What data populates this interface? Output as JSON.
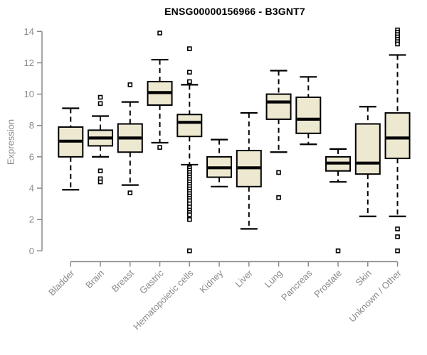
{
  "title": "ENSG00000156966 - B3GNT7",
  "chart_data": {
    "type": "boxplot",
    "title": "ENSG00000156966 - B3GNT7",
    "ylabel": "Expression",
    "ylim": [
      0,
      14
    ],
    "yticks": [
      0,
      2,
      4,
      6,
      8,
      10,
      12,
      14
    ],
    "grid": false,
    "legend": "none",
    "categories": [
      "Bladder",
      "Brain",
      "Breast",
      "Gastric",
      "Hematopoietic cells",
      "Kidney",
      "Liver",
      "Lung",
      "Pancreas",
      "Prostate",
      "Skin",
      "Unknown / Other"
    ],
    "series": [
      {
        "name": "Bladder",
        "low": 3.9,
        "q1": 6.0,
        "median": 7.0,
        "q3": 7.9,
        "high": 9.1,
        "outliers": []
      },
      {
        "name": "Brain",
        "low": 6.0,
        "q1": 6.7,
        "median": 7.2,
        "q3": 7.7,
        "high": 8.6,
        "outliers": [
          9.8,
          9.4,
          5.1,
          4.6,
          4.4
        ]
      },
      {
        "name": "Breast",
        "low": 4.2,
        "q1": 6.3,
        "median": 7.2,
        "q3": 8.1,
        "high": 9.5,
        "outliers": [
          10.6,
          3.7
        ]
      },
      {
        "name": "Gastric",
        "low": 6.9,
        "q1": 9.3,
        "median": 10.1,
        "q3": 10.8,
        "high": 12.2,
        "outliers": [
          13.9,
          6.6
        ]
      },
      {
        "name": "Hematopoietic cells",
        "low": 5.5,
        "q1": 7.3,
        "median": 8.2,
        "q3": 8.7,
        "high": 10.6,
        "outliers": [
          12.9,
          11.4,
          10.8,
          5.3,
          5.15,
          5.0,
          4.85,
          4.7,
          4.55,
          4.4,
          4.25,
          4.1,
          3.95,
          3.8,
          3.65,
          3.5,
          3.35,
          3.2,
          3.0,
          2.8,
          2.6,
          2.45,
          2.3,
          2.0,
          0
        ]
      },
      {
        "name": "Kidney",
        "low": 4.1,
        "q1": 4.7,
        "median": 5.3,
        "q3": 6.0,
        "high": 7.1,
        "outliers": []
      },
      {
        "name": "Liver",
        "low": 1.4,
        "q1": 4.1,
        "median": 5.3,
        "q3": 6.4,
        "high": 8.8,
        "outliers": []
      },
      {
        "name": "Lung",
        "low": 6.3,
        "q1": 8.4,
        "median": 9.5,
        "q3": 10.0,
        "high": 11.5,
        "outliers": [
          5.0,
          3.4
        ]
      },
      {
        "name": "Pancreas",
        "low": 6.8,
        "q1": 7.5,
        "median": 8.4,
        "q3": 9.8,
        "high": 11.1,
        "outliers": []
      },
      {
        "name": "Prostate",
        "low": 4.4,
        "q1": 5.1,
        "median": 5.6,
        "q3": 6.0,
        "high": 6.5,
        "outliers": [
          0
        ]
      },
      {
        "name": "Skin",
        "low": 2.2,
        "q1": 4.9,
        "median": 5.6,
        "q3": 8.1,
        "high": 9.2,
        "outliers": []
      },
      {
        "name": "Unknown / Other",
        "low": 2.2,
        "q1": 5.9,
        "median": 7.2,
        "q3": 8.8,
        "high": 12.5,
        "outliers": [
          14.1,
          13.95,
          13.8,
          13.65,
          13.5,
          13.35,
          13.2,
          1.4,
          0.9,
          0
        ]
      }
    ],
    "colors": {
      "box_fill": "#EDE8D0",
      "box_border": "#000000",
      "median": "#000000",
      "whisker": "#000000",
      "outlier_stroke": "#000000",
      "outlier_fill": "#FFFFFF",
      "axis": "#8A8A8A",
      "title": "#000000"
    }
  }
}
